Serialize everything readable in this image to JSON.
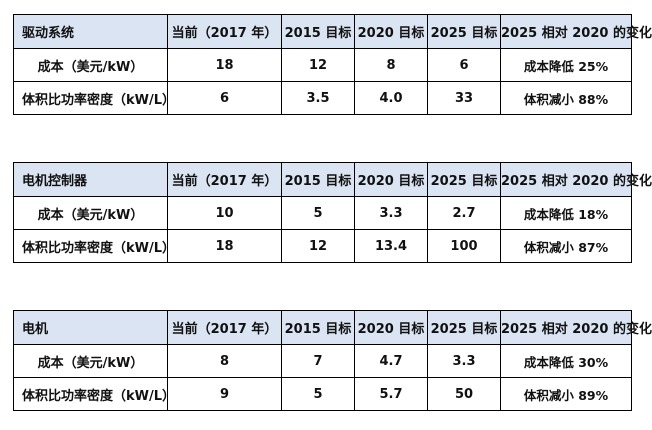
{
  "columns": [
    "当前（2017 年）",
    "2015 目标",
    "2020 目标",
    "2025 目标",
    "2025 相对 2020 的变化"
  ],
  "tables": [
    {
      "title": "驱动系统",
      "rows": [
        {
          "name": "成本（美元/kW）",
          "current": "18",
          "t2015": "12",
          "t2020": "8",
          "t2025": "6",
          "change": "成本降低 25%"
        },
        {
          "name": "体积比功率密度（kW/L）",
          "current": "6",
          "t2015": "3.5",
          "t2020": "4.0",
          "t2025": "33",
          "change": "体积减小 88%"
        }
      ]
    },
    {
      "title": "电机控制器",
      "rows": [
        {
          "name": "成本（美元/kW）",
          "current": "10",
          "t2015": "5",
          "t2020": "3.3",
          "t2025": "2.7",
          "change": "成本降低 18%"
        },
        {
          "name": "体积比功率密度（kW/L）",
          "current": "18",
          "t2015": "12",
          "t2020": "13.4",
          "t2025": "100",
          "change": "体积减小 87%"
        }
      ]
    },
    {
      "title": "电机",
      "rows": [
        {
          "name": "成本（美元/kW）",
          "current": "8",
          "t2015": "7",
          "t2020": "4.7",
          "t2025": "3.3",
          "change": "成本降低 30%"
        },
        {
          "name": "体积比功率密度（kW/L）",
          "current": "9",
          "t2015": "5",
          "t2020": "5.7",
          "t2025": "50",
          "change": "体积减小 89%"
        }
      ]
    }
  ]
}
